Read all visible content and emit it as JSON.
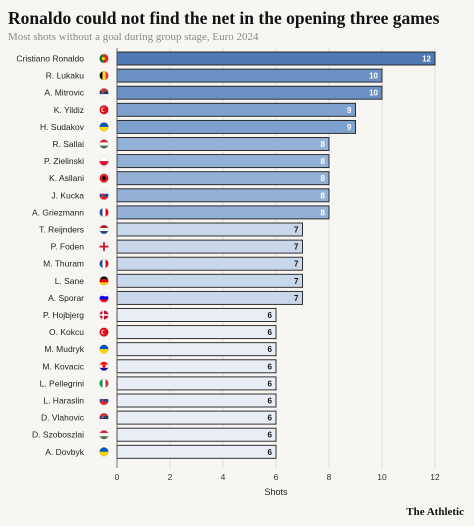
{
  "header": {
    "title": "Ronaldo could not find the net in the opening three games",
    "subtitle": "Most shots without a goal during group stage, Euro 2024"
  },
  "footer": {
    "logo": "The Athletic"
  },
  "chart_data": {
    "type": "bar",
    "orientation": "horizontal",
    "title": "Ronaldo could not find the net in the opening three games",
    "subtitle": "Most shots without a goal during group stage, Euro 2024",
    "xlabel": "Shots",
    "ylabel": "",
    "xlim": [
      0,
      12
    ],
    "xticks": [
      0,
      2,
      4,
      6,
      8,
      10,
      12
    ],
    "grid": true,
    "categories": [
      "Cristiano Ronaldo",
      "R. Lukaku",
      "A. Mitrovic",
      "K. Yildiz",
      "H. Sudakov",
      "R. Sallai",
      "P. Zielinski",
      "K. Asllani",
      "J. Kucka",
      "A. Griezmann",
      "T. Reijnders",
      "P. Foden",
      "M. Thuram",
      "L. Sane",
      "A. Sporar",
      "P. Hojbjerg",
      "O. Kokcu",
      "M. Mudryk",
      "M. Kovacic",
      "L. Pellegrini",
      "L. Haraslin",
      "D. Vlahovic",
      "D. Szoboszlai",
      "A. Dovbyk"
    ],
    "values": [
      12,
      10,
      10,
      9,
      9,
      8,
      8,
      8,
      8,
      8,
      7,
      7,
      7,
      7,
      7,
      6,
      6,
      6,
      6,
      6,
      6,
      6,
      6,
      6
    ],
    "flags": [
      "portugal",
      "belgium",
      "serbia",
      "turkey",
      "ukraine",
      "hungary",
      "poland",
      "albania",
      "slovakia",
      "france",
      "netherlands",
      "england",
      "france",
      "germany",
      "slovenia",
      "denmark",
      "turkey",
      "ukraine",
      "croatia",
      "italy",
      "slovakia",
      "serbia",
      "hungary",
      "ukraine"
    ],
    "colors": {
      "12": "#4e79b4",
      "10": "#6a90c4",
      "9": "#7ea0cd",
      "8": "#93b0d6",
      "7": "#c9d7ea",
      "6": "#e9eef6"
    }
  }
}
